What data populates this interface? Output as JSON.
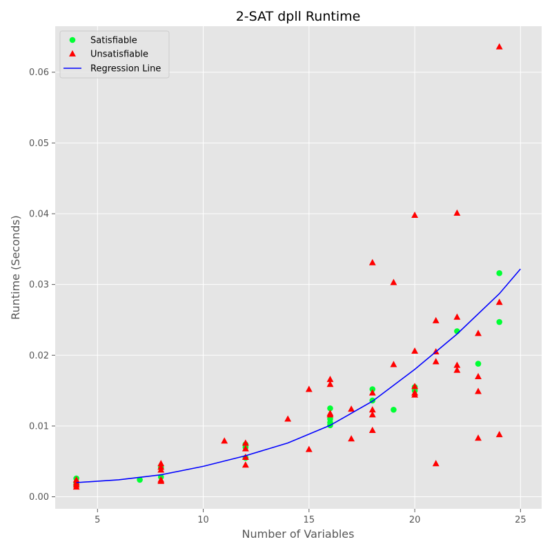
{
  "chart_data": {
    "type": "scatter",
    "title": "2-SAT dpll Runtime",
    "xlabel": "Number of Variables",
    "ylabel": "Runtime (Seconds)",
    "xlim": [
      3,
      26
    ],
    "ylim": [
      -0.0017,
      0.0665
    ],
    "x_ticks": [
      5,
      10,
      15,
      20,
      25
    ],
    "y_ticks": [
      0.0,
      0.01,
      0.02,
      0.03,
      0.04,
      0.05,
      0.06
    ],
    "x_tick_labels": [
      "5",
      "10",
      "15",
      "20",
      "25"
    ],
    "y_tick_labels": [
      "0.00",
      "0.01",
      "0.02",
      "0.03",
      "0.04",
      "0.05",
      "0.06"
    ],
    "grid": true,
    "legend_position": "top-left",
    "legend": [
      "Satisfiable",
      "Unsatisfiable",
      "Regression Line"
    ],
    "colors": {
      "satisfiable": "#00ff33",
      "unsatisfiable": "#ff0000",
      "regression": "#0000ff",
      "plot_bg": "#e5e5e5",
      "grid": "#ffffff"
    },
    "series": [
      {
        "name": "Satisfiable",
        "marker": "circle",
        "points": [
          [
            4,
            0.0026
          ],
          [
            4,
            0.0019
          ],
          [
            4,
            0.0016
          ],
          [
            7,
            0.0024
          ],
          [
            8,
            0.0028
          ],
          [
            8,
            0.0041
          ],
          [
            12,
            0.0074
          ],
          [
            12,
            0.007
          ],
          [
            12,
            0.0055
          ],
          [
            16,
            0.0125
          ],
          [
            16,
            0.011
          ],
          [
            16,
            0.0105
          ],
          [
            16,
            0.0101
          ],
          [
            18,
            0.0152
          ],
          [
            18,
            0.0136
          ],
          [
            19,
            0.0123
          ],
          [
            20,
            0.0155
          ],
          [
            20,
            0.015
          ],
          [
            22,
            0.0234
          ],
          [
            23,
            0.0188
          ],
          [
            24,
            0.0316
          ],
          [
            24,
            0.0247
          ]
        ]
      },
      {
        "name": "Unsatisfiable",
        "marker": "triangle",
        "points": [
          [
            4,
            0.0024
          ],
          [
            4,
            0.002
          ],
          [
            4,
            0.0017
          ],
          [
            4,
            0.0014
          ],
          [
            8,
            0.0047
          ],
          [
            8,
            0.0042
          ],
          [
            8,
            0.0038
          ],
          [
            8,
            0.0024
          ],
          [
            8,
            0.0022
          ],
          [
            11,
            0.0079
          ],
          [
            12,
            0.0076
          ],
          [
            12,
            0.0068
          ],
          [
            12,
            0.0056
          ],
          [
            12,
            0.0045
          ],
          [
            14,
            0.011
          ],
          [
            15,
            0.0152
          ],
          [
            15,
            0.0067
          ],
          [
            16,
            0.0166
          ],
          [
            16,
            0.0159
          ],
          [
            16,
            0.0118
          ],
          [
            16,
            0.0116
          ],
          [
            17,
            0.0124
          ],
          [
            17,
            0.0082
          ],
          [
            18,
            0.0331
          ],
          [
            18,
            0.0147
          ],
          [
            18,
            0.0123
          ],
          [
            18,
            0.0116
          ],
          [
            18,
            0.0094
          ],
          [
            19,
            0.0303
          ],
          [
            19,
            0.0187
          ],
          [
            20,
            0.0398
          ],
          [
            20,
            0.0206
          ],
          [
            20,
            0.0156
          ],
          [
            20,
            0.0147
          ],
          [
            20,
            0.0144
          ],
          [
            21,
            0.0249
          ],
          [
            21,
            0.0205
          ],
          [
            21,
            0.0191
          ],
          [
            21,
            0.0047
          ],
          [
            22,
            0.0401
          ],
          [
            22,
            0.0254
          ],
          [
            22,
            0.0186
          ],
          [
            22,
            0.0179
          ],
          [
            23,
            0.0231
          ],
          [
            23,
            0.017
          ],
          [
            23,
            0.0149
          ],
          [
            23,
            0.0083
          ],
          [
            24,
            0.0636
          ],
          [
            24,
            0.0275
          ],
          [
            24,
            0.0088
          ]
        ]
      },
      {
        "name": "Regression Line",
        "marker": "line",
        "points": [
          [
            4,
            0.002
          ],
          [
            6,
            0.0024
          ],
          [
            8,
            0.0031
          ],
          [
            10,
            0.0043
          ],
          [
            12,
            0.0058
          ],
          [
            14,
            0.0076
          ],
          [
            16,
            0.0101
          ],
          [
            18,
            0.0135
          ],
          [
            20,
            0.018
          ],
          [
            22,
            0.023
          ],
          [
            24,
            0.0287
          ],
          [
            25,
            0.0322
          ]
        ]
      }
    ]
  }
}
